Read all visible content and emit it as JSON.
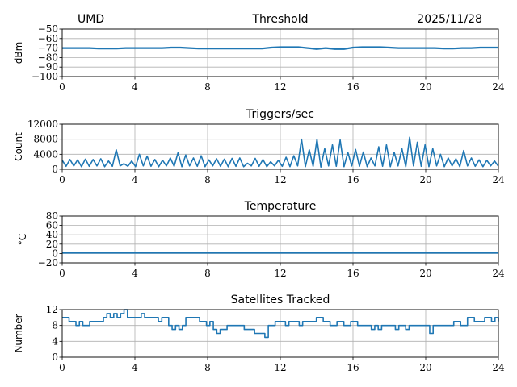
{
  "header": {
    "left": "UMD",
    "right": "2025/11/28"
  },
  "colors": {
    "line": "#1f77b4",
    "grid": "#b0b0b0"
  },
  "chart_data": [
    {
      "type": "line",
      "title": "Threshold",
      "xlabel": "",
      "ylabel": "dBm",
      "xlim": [
        0,
        24
      ],
      "ylim": [
        -100,
        -50
      ],
      "xticks": [
        "0",
        "4",
        "8",
        "12",
        "16",
        "20",
        "24"
      ],
      "yticks": [
        -100,
        -90,
        -80,
        -70,
        -60,
        -50
      ],
      "ytick_labels": [
        "−100",
        "−90",
        "−80",
        "−70",
        "−60",
        "−50"
      ],
      "grid": true,
      "values": [
        -70,
        -70,
        -70,
        -70,
        -70.5,
        -70.5,
        -70.5,
        -70,
        -70,
        -70,
        -70,
        -70,
        -69.5,
        -69.5,
        -70,
        -70.5,
        -70.5,
        -70.5,
        -70.5,
        -70.5,
        -70.5,
        -70.5,
        -70.5,
        -69.5,
        -69,
        -69,
        -69,
        -70,
        -71,
        -70,
        -71,
        -71,
        -69.5,
        -69,
        -69,
        -69,
        -69.5,
        -70,
        -70,
        -70,
        -70,
        -70,
        -70.5,
        -70.5,
        -70,
        -70,
        -69.5,
        -69.5,
        -69.5
      ]
    },
    {
      "type": "line",
      "title": "Triggers/sec",
      "xlabel": "",
      "ylabel": "Count",
      "xlim": [
        0,
        24
      ],
      "ylim": [
        0,
        12000
      ],
      "xticks": [
        "0",
        "4",
        "8",
        "12",
        "16",
        "20",
        "24"
      ],
      "yticks": [
        0,
        4000,
        8000,
        12000
      ],
      "ytick_labels": [
        "0",
        "4000",
        "8000",
        "12000"
      ],
      "grid": true,
      "values": [
        2400,
        800,
        2600,
        900,
        2500,
        700,
        2700,
        800,
        2600,
        900,
        2800,
        700,
        2200,
        800,
        5200,
        900,
        1500,
        800,
        2200,
        700,
        4000,
        900,
        3500,
        800,
        2600,
        700,
        2400,
        900,
        3000,
        800,
        4400,
        700,
        3800,
        900,
        3000,
        800,
        3600,
        700,
        2500,
        900,
        2800,
        800,
        2700,
        700,
        2900,
        800,
        3000,
        700,
        1600,
        900,
        2900,
        800,
        2600,
        700,
        2000,
        900,
        2400,
        800,
        3200,
        700,
        3600,
        900,
        8000,
        700,
        5200,
        800,
        8000,
        600,
        5500,
        900,
        6500,
        800,
        7800,
        700,
        4500,
        900,
        5300,
        800,
        4600,
        700,
        3000,
        900,
        6000,
        800,
        6500,
        700,
        4500,
        900,
        5500,
        700,
        8500,
        900,
        7200,
        800,
        6500,
        700,
        5500,
        900,
        4000,
        700,
        3000,
        900,
        2800,
        700,
        5000,
        900,
        3000,
        800,
        2500,
        700,
        2400,
        900,
        2200,
        800
      ]
    },
    {
      "type": "line",
      "title": "Temperature",
      "xlabel": "",
      "ylabel": "°C",
      "xlim": [
        0,
        24
      ],
      "ylim": [
        -20,
        80
      ],
      "xticks": [
        "0",
        "4",
        "8",
        "12",
        "16",
        "20",
        "24"
      ],
      "yticks": [
        -20,
        0,
        20,
        40,
        60,
        80
      ],
      "ytick_labels": [
        "−20",
        "0",
        "20",
        "40",
        "60",
        "80"
      ],
      "grid": true,
      "values": [
        1,
        1,
        1,
        1,
        1,
        1,
        1,
        1,
        1,
        1,
        1,
        1,
        1
      ]
    },
    {
      "type": "line",
      "title": "Satellites Tracked",
      "xlabel": "",
      "ylabel": "Number",
      "xlim": [
        0,
        24
      ],
      "ylim": [
        0,
        12
      ],
      "xticks": [
        "0",
        "4",
        "8",
        "12",
        "16",
        "20",
        "24"
      ],
      "yticks": [
        0,
        4,
        8,
        12
      ],
      "ytick_labels": [
        "0",
        "4",
        "8",
        "12"
      ],
      "grid": true,
      "step": true,
      "values": [
        10,
        10,
        9,
        9,
        8,
        9,
        8,
        8,
        9,
        9,
        9,
        9,
        10,
        11,
        10,
        11,
        10,
        11,
        12,
        10,
        10,
        10,
        10,
        11,
        10,
        10,
        10,
        10,
        9,
        10,
        10,
        8,
        7,
        8,
        7,
        8,
        10,
        10,
        10,
        10,
        9,
        9,
        8,
        9,
        7,
        6,
        7,
        7,
        8,
        8,
        8,
        8,
        8,
        7,
        7,
        7,
        6,
        6,
        6,
        5,
        8,
        8,
        9,
        9,
        9,
        8,
        9,
        9,
        9,
        8,
        9,
        9,
        9,
        9,
        10,
        10,
        9,
        9,
        8,
        8,
        9,
        9,
        8,
        8,
        9,
        9,
        8,
        8,
        8,
        8,
        7,
        8,
        7,
        8,
        8,
        8,
        8,
        7,
        8,
        8,
        7,
        8,
        8,
        8,
        8,
        8,
        8,
        6,
        8,
        8,
        8,
        8,
        8,
        8,
        9,
        9,
        8,
        8,
        10,
        10,
        9,
        9,
        9,
        10,
        10,
        9,
        10,
        9
      ]
    }
  ]
}
